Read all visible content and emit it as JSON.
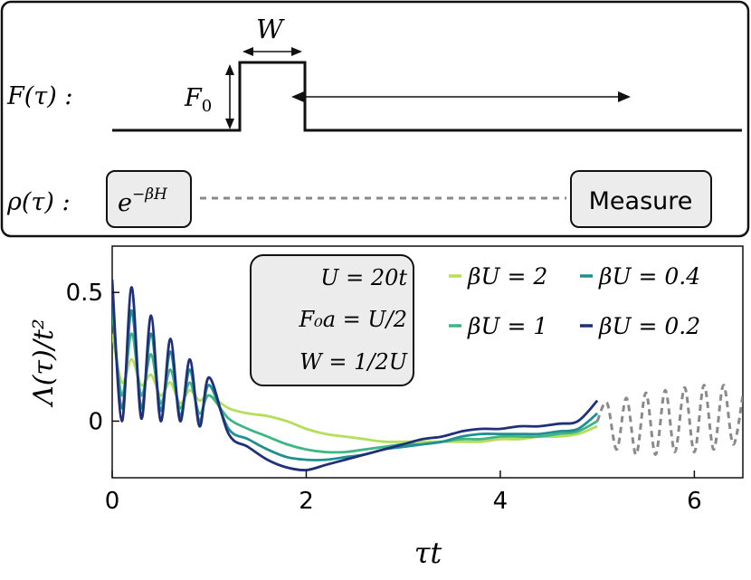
{
  "schematic": {
    "force_label": "F(τ) :",
    "density_label": "ρ(τ) :",
    "width_label": "W",
    "amplitude_label": "F",
    "amplitude_subscript": "0",
    "initial_state_base": "e",
    "initial_state_exponent": "−βH",
    "measure_label": "Measure"
  },
  "parameters_box": {
    "line1": "U = 20t",
    "line2": "F₀a = U/2",
    "line3": "W = 1/2U"
  },
  "chart_data": {
    "type": "line",
    "xlabel": "τt",
    "ylabel": "Λ(τ)/t²",
    "xlim": [
      0,
      6.5
    ],
    "ylim": [
      -0.22,
      0.68
    ],
    "xticks": [
      0,
      2,
      4,
      6
    ],
    "yticks": [
      0,
      0.5
    ],
    "xtick_labels": [
      "0",
      "2",
      "4",
      "6"
    ],
    "ytick_labels": [
      "0",
      "0.5"
    ],
    "grid": false,
    "legend_position": "top-right",
    "legend_entries": [
      "βU = 2",
      "βU = 0.4",
      "βU = 1",
      "βU = 0.2"
    ],
    "series": [
      {
        "name": "βU = 2",
        "color": "#b5de5a",
        "x": [
          0,
          0.1,
          0.2,
          0.3,
          0.4,
          0.5,
          0.6,
          0.7,
          0.8,
          0.9,
          1.0,
          1.2,
          1.4,
          1.6,
          1.8,
          2.0,
          2.2,
          2.4,
          2.6,
          2.8,
          3.0,
          3.2,
          3.4,
          3.6,
          3.8,
          4.0,
          4.2,
          4.4,
          4.6,
          4.8,
          5.0
        ],
        "y": [
          0.34,
          0.15,
          0.24,
          0.14,
          0.18,
          0.1,
          0.15,
          0.07,
          0.12,
          0.08,
          0.1,
          0.05,
          0.03,
          0.02,
          0.0,
          -0.03,
          -0.05,
          -0.06,
          -0.07,
          -0.08,
          -0.08,
          -0.08,
          -0.08,
          -0.08,
          -0.08,
          -0.07,
          -0.07,
          -0.06,
          -0.06,
          -0.05,
          -0.02
        ]
      },
      {
        "name": "βU = 1",
        "color": "#3fb584",
        "x": [
          0,
          0.1,
          0.2,
          0.3,
          0.4,
          0.5,
          0.6,
          0.7,
          0.8,
          0.9,
          1.0,
          1.2,
          1.4,
          1.6,
          1.8,
          2.0,
          2.2,
          2.4,
          2.6,
          2.8,
          3.0,
          3.2,
          3.4,
          3.6,
          3.8,
          4.0,
          4.2,
          4.4,
          4.6,
          4.8,
          5.0
        ],
        "y": [
          0.43,
          0.1,
          0.34,
          0.1,
          0.26,
          0.07,
          0.2,
          0.05,
          0.15,
          0.03,
          0.1,
          0.01,
          -0.03,
          -0.06,
          -0.09,
          -0.11,
          -0.12,
          -0.12,
          -0.11,
          -0.1,
          -0.09,
          -0.09,
          -0.08,
          -0.07,
          -0.07,
          -0.06,
          -0.06,
          -0.06,
          -0.05,
          -0.04,
          0.0
        ]
      },
      {
        "name": "βU = 0.4",
        "color": "#1f8f92",
        "x": [
          0,
          0.1,
          0.2,
          0.3,
          0.4,
          0.5,
          0.6,
          0.7,
          0.8,
          0.9,
          1.0,
          1.2,
          1.4,
          1.6,
          1.8,
          2.0,
          2.2,
          2.4,
          2.6,
          2.8,
          3.0,
          3.2,
          3.4,
          3.6,
          3.8,
          4.0,
          4.2,
          4.4,
          4.6,
          4.8,
          5.0
        ],
        "y": [
          0.49,
          0.05,
          0.43,
          0.05,
          0.34,
          0.04,
          0.27,
          0.02,
          0.2,
          0.0,
          0.14,
          -0.03,
          -0.07,
          -0.11,
          -0.14,
          -0.15,
          -0.15,
          -0.14,
          -0.13,
          -0.11,
          -0.1,
          -0.09,
          -0.08,
          -0.06,
          -0.05,
          -0.05,
          -0.05,
          -0.05,
          -0.04,
          -0.03,
          0.03
        ]
      },
      {
        "name": "βU = 0.2",
        "color": "#1f2f7a",
        "x": [
          0,
          0.1,
          0.2,
          0.3,
          0.4,
          0.5,
          0.6,
          0.7,
          0.8,
          0.9,
          1.0,
          1.2,
          1.4,
          1.6,
          1.8,
          2.0,
          2.2,
          2.4,
          2.6,
          2.8,
          3.0,
          3.2,
          3.4,
          3.6,
          3.8,
          4.0,
          4.2,
          4.4,
          4.6,
          4.8,
          5.0
        ],
        "y": [
          0.55,
          0.0,
          0.52,
          0.01,
          0.41,
          0.0,
          0.32,
          0.0,
          0.24,
          -0.02,
          0.17,
          -0.05,
          -0.1,
          -0.15,
          -0.18,
          -0.19,
          -0.17,
          -0.15,
          -0.13,
          -0.11,
          -0.09,
          -0.07,
          -0.06,
          -0.04,
          -0.03,
          -0.03,
          -0.02,
          -0.02,
          -0.01,
          0.0,
          0.08
        ]
      },
      {
        "name": "",
        "color": "#8a8a8a",
        "dashed": true,
        "x": [
          5.0,
          5.1,
          5.2,
          5.3,
          5.4,
          5.5,
          5.6,
          5.7,
          5.8,
          5.9,
          6.0,
          6.1,
          6.2,
          6.3,
          6.4,
          6.5
        ],
        "y": [
          0.0,
          0.07,
          -0.11,
          0.09,
          -0.13,
          0.11,
          -0.13,
          0.12,
          -0.12,
          0.13,
          -0.12,
          0.14,
          -0.11,
          0.14,
          -0.09,
          0.1
        ]
      }
    ]
  }
}
